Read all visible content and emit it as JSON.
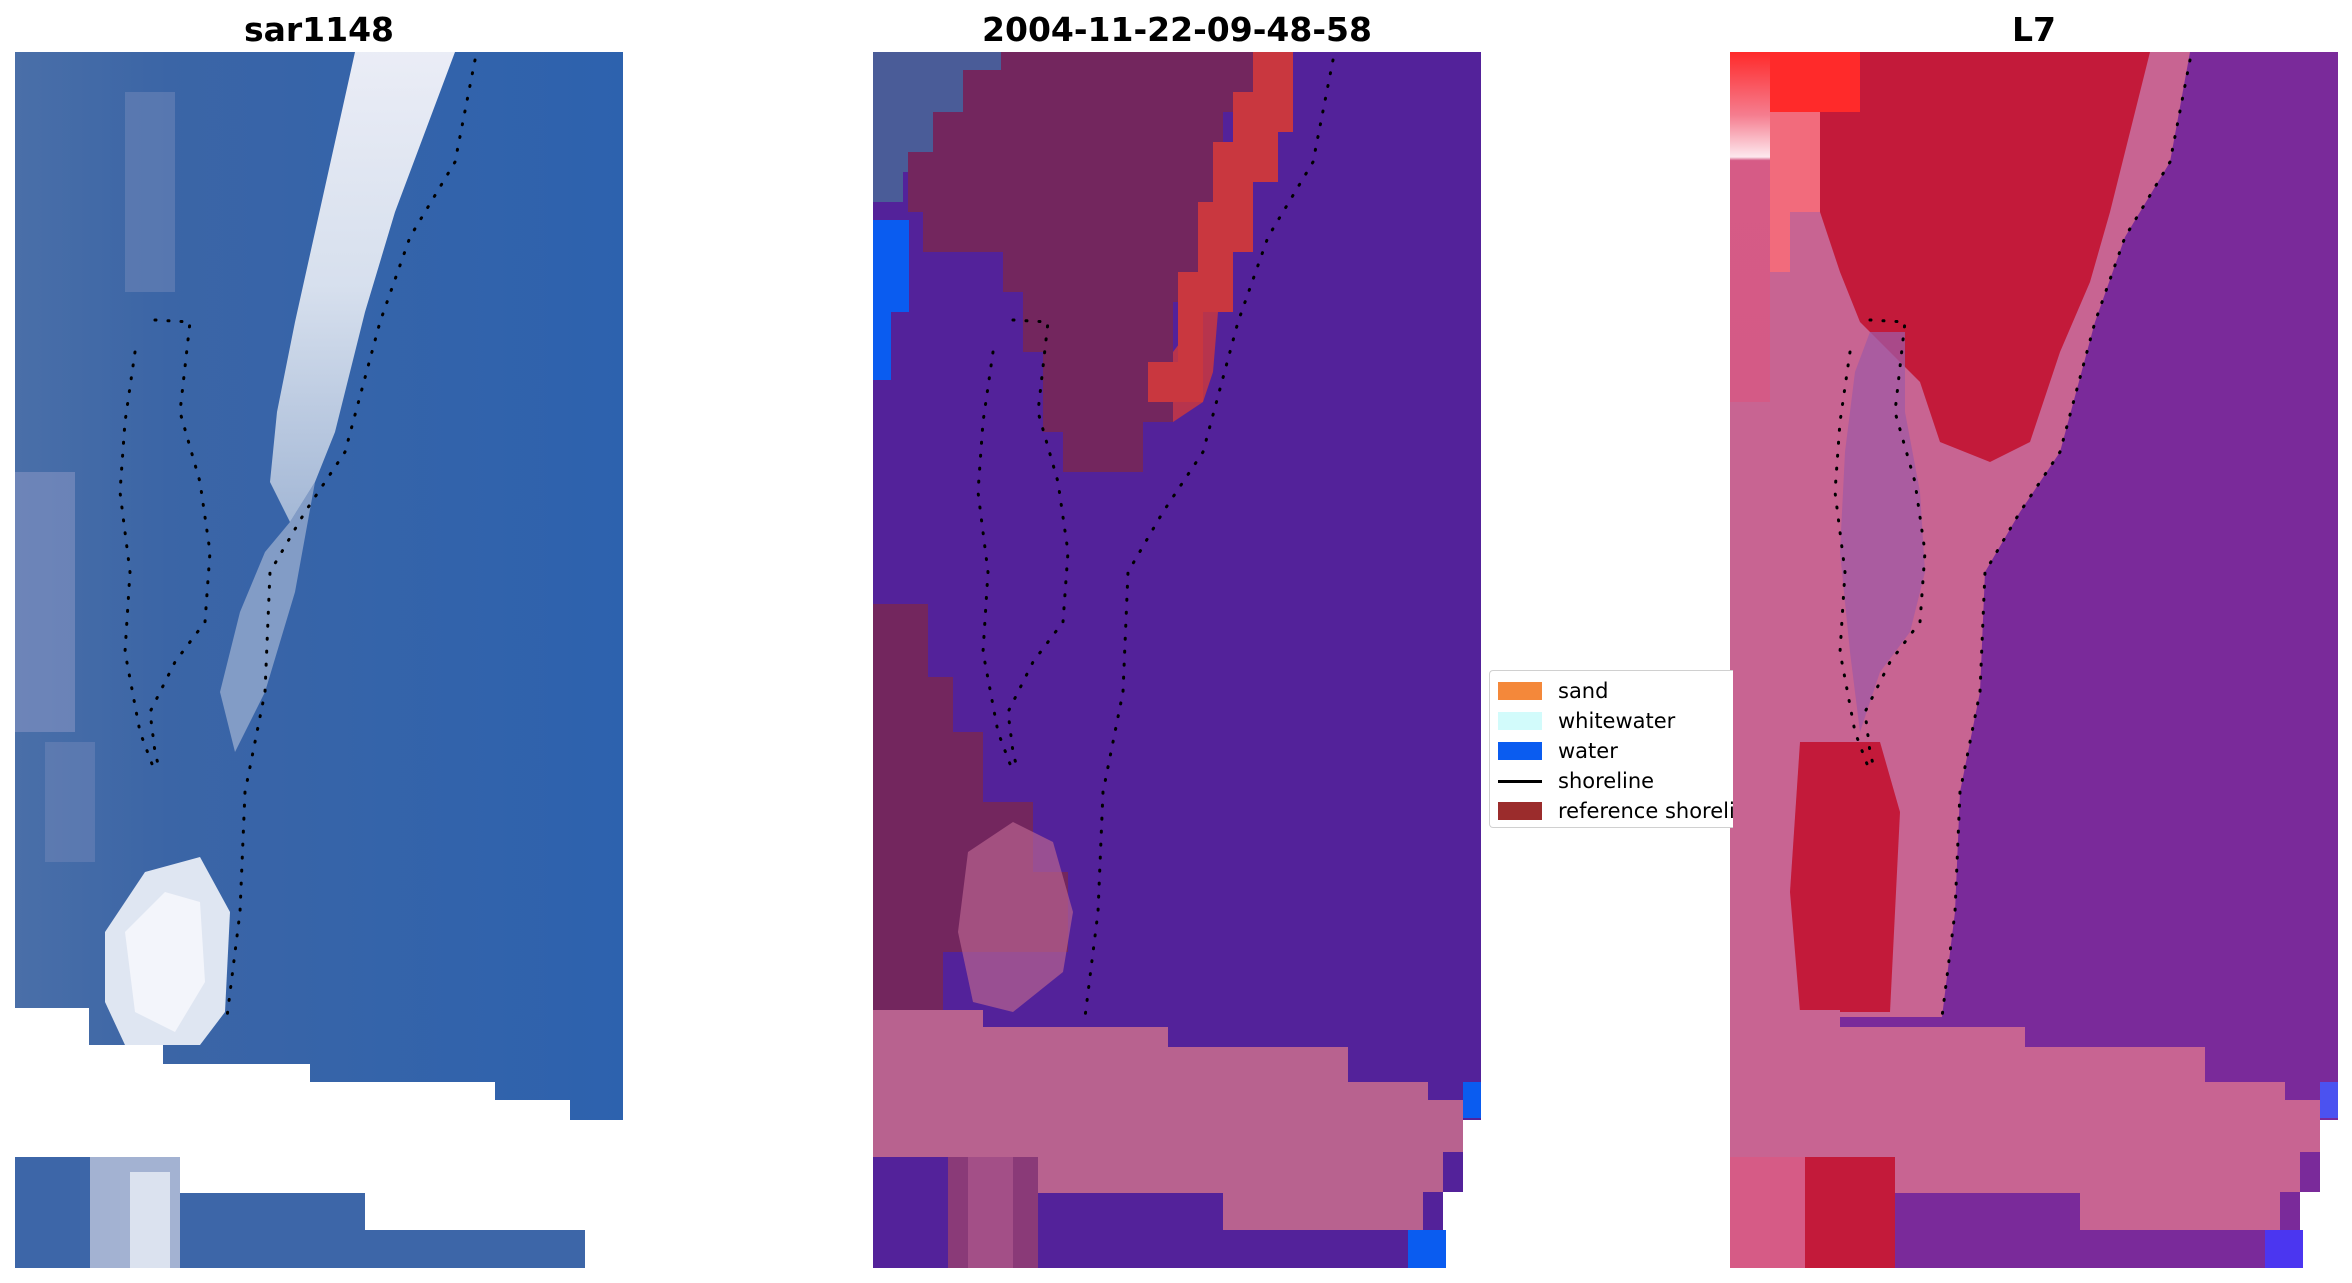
{
  "titles": {
    "left": "sar1148",
    "middle": "2004-11-22-09-48-58",
    "right": "L7"
  },
  "legend": {
    "items": [
      {
        "label": "sand",
        "color": "#f4883a",
        "kind": "patch"
      },
      {
        "label": "whitewater",
        "color": "#d2fbfb",
        "kind": "patch"
      },
      {
        "label": "water",
        "color": "#0a5cf0",
        "kind": "patch"
      },
      {
        "label": "shoreline",
        "color": "#000000",
        "kind": "line"
      },
      {
        "label": "reference shoreline",
        "color": "#9b2c2c",
        "kind": "patch"
      }
    ]
  },
  "colors": {
    "rgb_ocean": "#2f5fa6",
    "rgb_whitewater": "#e6ecf5",
    "classified_water": "#53229a",
    "classified_sand_overlay": "#b8628f",
    "classified_dark_sand": "#73265e",
    "classified_red": "#c9373f",
    "classified_blue": "#0a5cf0",
    "l7_red": "#c31a3a",
    "l7_purple": "#7a2a9a",
    "l7_pink": "#c86492",
    "shoreline_dots": "#000000"
  }
}
